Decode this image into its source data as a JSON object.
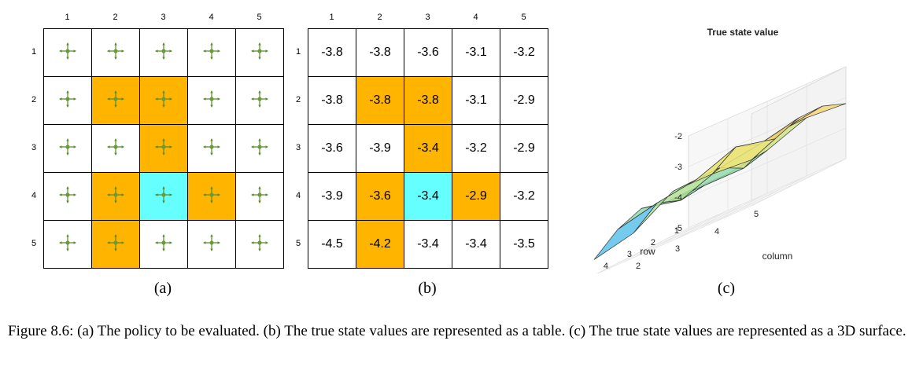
{
  "colors": {
    "orange": "#ffb400",
    "cyan": "#66ffff",
    "arrow": "#5a8a2c",
    "dot": "#6a9a3a"
  },
  "columns": [
    "1",
    "2",
    "3",
    "4",
    "5"
  ],
  "rows": [
    "1",
    "2",
    "3",
    "4",
    "5"
  ],
  "cell_types": [
    [
      "w",
      "w",
      "w",
      "w",
      "w"
    ],
    [
      "w",
      "o",
      "o",
      "w",
      "w"
    ],
    [
      "w",
      "w",
      "o",
      "w",
      "w"
    ],
    [
      "w",
      "o",
      "c",
      "o",
      "w"
    ],
    [
      "w",
      "o",
      "w",
      "w",
      "w"
    ]
  ],
  "policy": {
    "action": "stay-plus-arrows-icon"
  },
  "values": [
    [
      "-3.8",
      "-3.8",
      "-3.6",
      "-3.1",
      "-3.2"
    ],
    [
      "-3.8",
      "-3.8",
      "-3.8",
      "-3.1",
      "-2.9"
    ],
    [
      "-3.6",
      "-3.9",
      "-3.4",
      "-3.2",
      "-2.9"
    ],
    [
      "-3.9",
      "-3.6",
      "-3.4",
      "-2.9",
      "-3.2"
    ],
    [
      "-4.5",
      "-4.2",
      "-3.4",
      "-3.4",
      "-3.5"
    ]
  ],
  "subcaptions": {
    "a": "(a)",
    "b": "(b)",
    "c": "(c)"
  },
  "caption": "Figure 8.6: (a) The policy to be evaluated. (b) The true state values are represented as a table. (c) The true state values are represented as a 3D surface.",
  "chart_data": {
    "type": "surface",
    "title": "True state value",
    "xlabel": "column",
    "ylabel": "row",
    "zlabel": "",
    "x": [
      1,
      2,
      3,
      4,
      5
    ],
    "y": [
      1,
      2,
      3,
      4,
      5
    ],
    "z": [
      [
        -3.8,
        -3.8,
        -3.6,
        -3.1,
        -3.2
      ],
      [
        -3.8,
        -3.8,
        -3.8,
        -3.1,
        -2.9
      ],
      [
        -3.6,
        -3.9,
        -3.4,
        -3.2,
        -2.9
      ],
      [
        -3.9,
        -3.6,
        -3.4,
        -2.9,
        -3.2
      ],
      [
        -4.5,
        -4.2,
        -3.4,
        -3.4,
        -3.5
      ]
    ],
    "zlim": [
      -5,
      -2
    ],
    "zticks": [
      "-2",
      "-3",
      "-4",
      "-5"
    ],
    "xticks": [
      "1",
      "2",
      "3",
      "4",
      "5"
    ],
    "yticks": [
      "1",
      "2",
      "3",
      "4",
      "5"
    ],
    "grid": true
  }
}
